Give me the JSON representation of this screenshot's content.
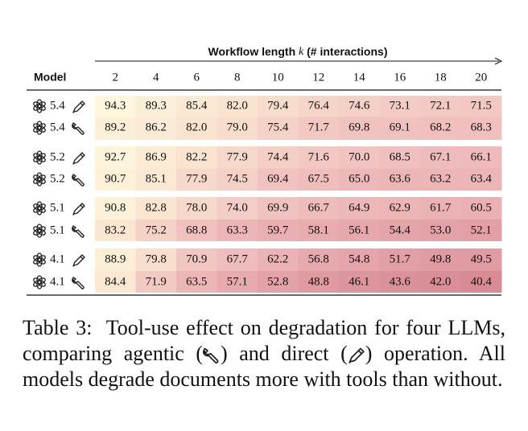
{
  "header": {
    "title_before": "Workflow length",
    "title_var": "k",
    "title_after": "(# interactions)",
    "model": "Model",
    "columns": [
      "2",
      "4",
      "6",
      "8",
      "10",
      "12",
      "14",
      "16",
      "18",
      "20"
    ]
  },
  "table": {
    "rows": [
      {
        "model": "5.4",
        "cells": [
          "94.3",
          "89.3",
          "85.4",
          "82.0",
          "79.4",
          "76.4",
          "74.6",
          "73.1",
          "72.1",
          "71.5"
        ]
      },
      {
        "model": "5.4",
        "cells": [
          "89.2",
          "86.2",
          "82.0",
          "79.0",
          "75.4",
          "71.7",
          "69.8",
          "69.1",
          "68.2",
          "68.3"
        ]
      },
      {
        "model": "5.2",
        "cells": [
          "92.7",
          "86.9",
          "82.2",
          "77.9",
          "74.4",
          "71.6",
          "70.0",
          "68.5",
          "67.1",
          "66.1"
        ]
      },
      {
        "model": "5.2",
        "cells": [
          "90.7",
          "85.1",
          "77.9",
          "74.5",
          "69.4",
          "67.5",
          "65.0",
          "63.6",
          "63.2",
          "63.4"
        ]
      },
      {
        "model": "5.1",
        "cells": [
          "90.8",
          "82.8",
          "78.0",
          "74.0",
          "69.9",
          "66.7",
          "64.9",
          "62.9",
          "61.7",
          "60.5"
        ]
      },
      {
        "model": "5.1",
        "cells": [
          "83.2",
          "75.2",
          "68.8",
          "63.3",
          "59.7",
          "58.1",
          "56.1",
          "54.4",
          "53.0",
          "52.1"
        ]
      },
      {
        "model": "4.1",
        "cells": [
          "88.9",
          "79.8",
          "70.9",
          "67.7",
          "62.2",
          "56.8",
          "54.8",
          "51.7",
          "49.8",
          "49.5"
        ]
      },
      {
        "model": "4.1",
        "cells": [
          "84.4",
          "71.9",
          "63.5",
          "57.1",
          "52.8",
          "48.8",
          "46.1",
          "43.6",
          "42.0",
          "40.4"
        ]
      }
    ]
  },
  "caption": {
    "label": "Table 3:",
    "part1": "Tool-use effect on degradation for four LLMs, comparing agentic (",
    "part2": ") and direct (",
    "part3": ") operation. All models degrade documents more with tools than without."
  }
}
